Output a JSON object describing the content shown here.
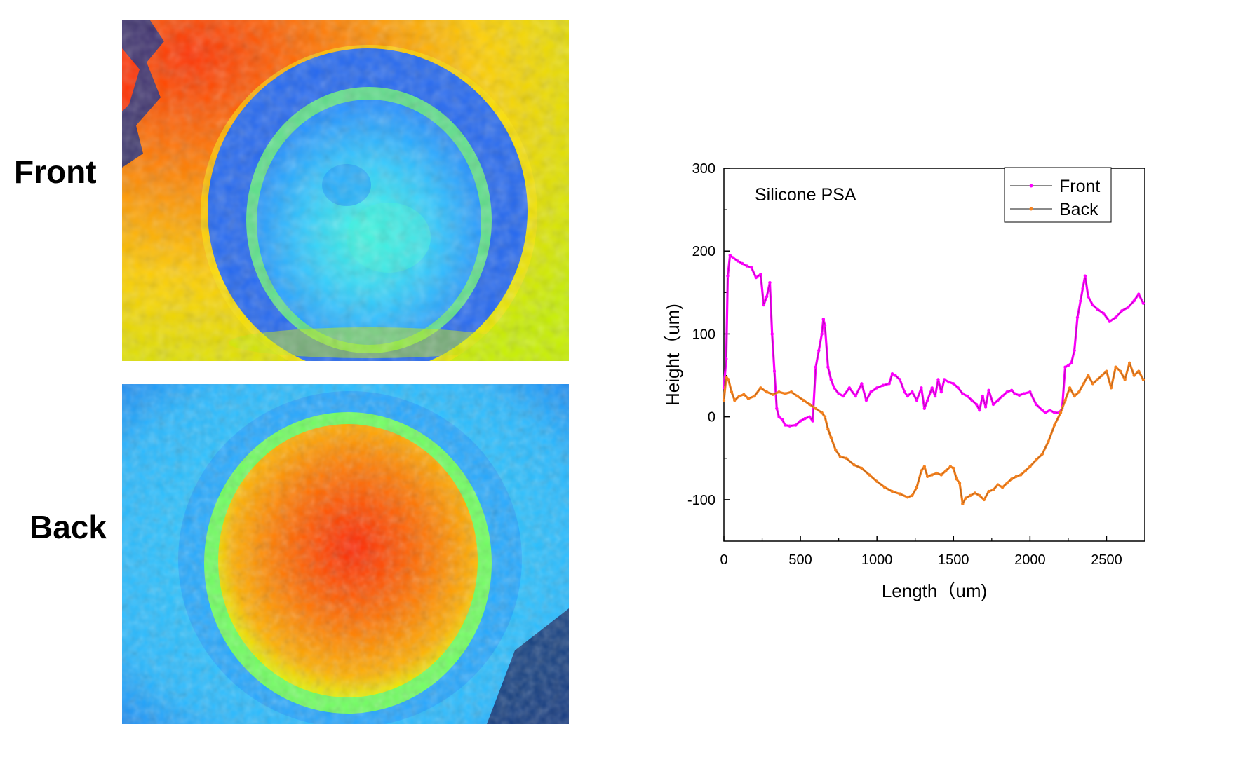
{
  "panels": {
    "front_label": "Front",
    "back_label": "Back"
  },
  "chart_data": {
    "type": "line",
    "annotation": "Silicone PSA",
    "xlabel": "Length（um)",
    "ylabel": "Height（um)",
    "xlim": [
      0,
      2750
    ],
    "ylim": [
      -150,
      300
    ],
    "xticks": [
      0,
      500,
      1000,
      1500,
      2000,
      2500
    ],
    "yticks": [
      -100,
      0,
      100,
      200,
      300
    ],
    "legend_position": "top-right",
    "series": [
      {
        "name": "Front",
        "color": "#ff00ff",
        "x": [
          0,
          15,
          25,
          40,
          60,
          90,
          120,
          150,
          180,
          210,
          240,
          260,
          280,
          300,
          315,
          330,
          345,
          360,
          380,
          400,
          430,
          470,
          500,
          530,
          560,
          580,
          600,
          620,
          640,
          650,
          660,
          680,
          700,
          720,
          750,
          780,
          820,
          860,
          900,
          930,
          960,
          1000,
          1040,
          1080,
          1100,
          1120,
          1150,
          1180,
          1200,
          1230,
          1260,
          1290,
          1310,
          1330,
          1360,
          1380,
          1400,
          1420,
          1440,
          1470,
          1500,
          1530,
          1560,
          1590,
          1620,
          1650,
          1670,
          1690,
          1710,
          1730,
          1760,
          1790,
          1820,
          1850,
          1880,
          1900,
          1930,
          1960,
          2000,
          2040,
          2080,
          2100,
          2130,
          2160,
          2190,
          2210,
          2230,
          2250,
          2270,
          2290,
          2310,
          2330,
          2345,
          2360,
          2380,
          2410,
          2440,
          2480,
          2520,
          2560,
          2600,
          2640,
          2680,
          2710,
          2740
        ],
        "y": [
          35,
          70,
          170,
          195,
          192,
          188,
          185,
          182,
          180,
          168,
          172,
          135,
          145,
          162,
          100,
          55,
          10,
          0,
          -3,
          -10,
          -11,
          -10,
          -5,
          -2,
          0,
          -5,
          60,
          80,
          100,
          118,
          110,
          60,
          45,
          35,
          28,
          25,
          35,
          25,
          40,
          20,
          30,
          35,
          38,
          40,
          52,
          50,
          45,
          30,
          25,
          30,
          20,
          35,
          10,
          20,
          35,
          25,
          45,
          30,
          45,
          42,
          40,
          35,
          28,
          25,
          20,
          15,
          8,
          25,
          12,
          32,
          15,
          20,
          25,
          30,
          32,
          28,
          26,
          28,
          30,
          15,
          8,
          5,
          8,
          5,
          5,
          10,
          60,
          62,
          65,
          80,
          120,
          140,
          155,
          170,
          145,
          135,
          130,
          125,
          115,
          120,
          128,
          132,
          140,
          148,
          137
        ]
      },
      {
        "name": "Back",
        "color": "#f5821f",
        "x": [
          0,
          15,
          30,
          50,
          70,
          100,
          130,
          160,
          200,
          240,
          280,
          320,
          360,
          400,
          440,
          480,
          520,
          560,
          600,
          640,
          660,
          680,
          700,
          730,
          760,
          800,
          850,
          900,
          950,
          1000,
          1050,
          1100,
          1150,
          1200,
          1230,
          1260,
          1290,
          1310,
          1330,
          1360,
          1390,
          1420,
          1450,
          1480,
          1500,
          1520,
          1540,
          1560,
          1580,
          1610,
          1640,
          1670,
          1700,
          1730,
          1760,
          1790,
          1820,
          1850,
          1880,
          1910,
          1940,
          1970,
          2000,
          2040,
          2080,
          2120,
          2160,
          2200,
          2230,
          2260,
          2290,
          2320,
          2350,
          2380,
          2410,
          2440,
          2470,
          2500,
          2530,
          2560,
          2590,
          2620,
          2650,
          2680,
          2710,
          2740
        ],
        "y": [
          20,
          48,
          45,
          30,
          20,
          25,
          27,
          22,
          25,
          35,
          30,
          27,
          30,
          28,
          30,
          25,
          20,
          15,
          10,
          5,
          0,
          -15,
          -25,
          -40,
          -48,
          -50,
          -58,
          -62,
          -70,
          -78,
          -85,
          -90,
          -93,
          -97,
          -95,
          -85,
          -65,
          -60,
          -72,
          -70,
          -68,
          -70,
          -65,
          -60,
          -62,
          -75,
          -80,
          -105,
          -98,
          -95,
          -92,
          -95,
          -100,
          -90,
          -88,
          -82,
          -85,
          -80,
          -75,
          -72,
          -70,
          -65,
          -60,
          -52,
          -45,
          -30,
          -10,
          5,
          20,
          35,
          25,
          30,
          40,
          50,
          40,
          45,
          50,
          55,
          35,
          60,
          55,
          45,
          65,
          50,
          55,
          45
        ]
      }
    ]
  },
  "colors": {
    "front_series": "#ff00ff",
    "back_series": "#f5821f"
  }
}
